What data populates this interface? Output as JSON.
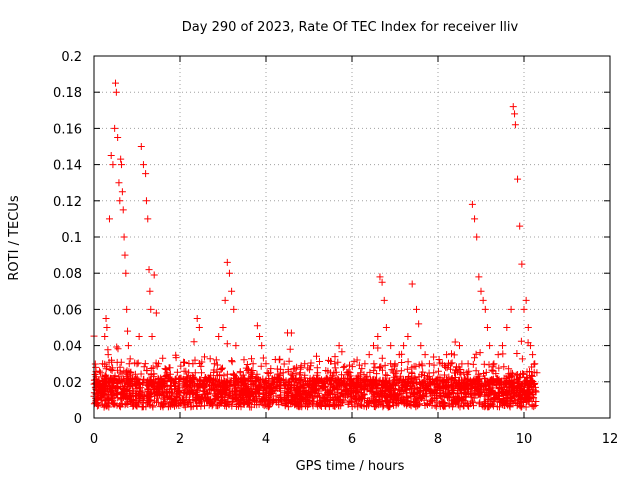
{
  "chart_data": {
    "type": "scatter",
    "title": "Day 290 of 2023, Rate Of TEC Index for receiver lliv",
    "xlabel": "GPS time / hours",
    "ylabel": "ROTI / TECUs",
    "xlim": [
      0,
      12
    ],
    "ylim": [
      0,
      0.2
    ],
    "xticks": [
      0,
      2,
      4,
      6,
      8,
      10,
      12
    ],
    "xtick_labels": [
      "0",
      "2",
      "4",
      "6",
      "8",
      "10",
      "12"
    ],
    "yticks": [
      0,
      0.02,
      0.04,
      0.06,
      0.08,
      0.1,
      0.12,
      0.14,
      0.16,
      0.18,
      0.2
    ],
    "ytick_labels": [
      "0",
      "0.02",
      "0.04",
      "0.06",
      "0.08",
      "0.1",
      "0.12",
      "0.14",
      "0.16",
      "0.18",
      "0.2"
    ],
    "grid": true,
    "marker": "plus",
    "color": "#ff0000",
    "series": [
      {
        "name": "ROTI",
        "x": [
          0.0,
          0.04,
          0.08,
          0.12,
          0.15,
          0.2,
          0.25,
          0.28,
          0.3,
          0.33,
          0.36,
          0.4,
          0.44,
          0.48,
          0.5,
          0.52,
          0.55,
          0.58,
          0.6,
          0.62,
          0.64,
          0.66,
          0.68,
          0.7,
          0.72,
          0.74,
          0.76,
          0.78,
          0.8,
          0.82,
          0.85,
          0.9,
          0.95,
          1.0,
          1.05,
          1.1,
          1.15,
          1.2,
          1.22,
          1.25,
          1.28,
          1.3,
          1.32,
          1.35,
          1.4,
          1.45,
          1.5,
          1.55,
          1.6,
          1.7,
          1.8,
          1.9,
          2.0,
          2.1,
          2.2,
          2.3,
          2.4,
          2.45,
          2.5,
          2.6,
          2.7,
          2.8,
          2.9,
          3.0,
          3.05,
          3.1,
          3.15,
          3.2,
          3.25,
          3.3,
          3.4,
          3.5,
          3.6,
          3.7,
          3.8,
          3.85,
          3.9,
          4.0,
          4.1,
          4.2,
          4.3,
          4.4,
          4.5,
          4.6,
          4.7,
          4.8,
          4.9,
          5.0,
          5.1,
          5.2,
          5.3,
          5.4,
          5.5,
          5.6,
          5.7,
          5.8,
          5.9,
          6.0,
          6.1,
          6.2,
          6.3,
          6.4,
          6.5,
          6.6,
          6.65,
          6.7,
          6.75,
          6.8,
          6.9,
          7.0,
          7.1,
          7.2,
          7.3,
          7.4,
          7.5,
          7.55,
          7.6,
          7.7,
          7.8,
          7.9,
          8.0,
          8.1,
          8.2,
          8.3,
          8.4,
          8.5,
          8.6,
          8.7,
          8.8,
          8.85,
          8.9,
          8.95,
          9.0,
          9.05,
          9.1,
          9.15,
          9.2,
          9.3,
          9.4,
          9.5,
          9.6,
          9.7,
          9.75,
          9.78,
          9.8,
          9.85,
          9.9,
          9.95,
          10.0,
          10.05,
          10.1,
          10.15,
          10.2,
          10.25,
          10.3
        ],
        "y": [
          0.012,
          0.028,
          0.02,
          0.018,
          0.025,
          0.03,
          0.045,
          0.055,
          0.05,
          0.035,
          0.11,
          0.145,
          0.14,
          0.16,
          0.185,
          0.18,
          0.155,
          0.13,
          0.12,
          0.143,
          0.14,
          0.125,
          0.115,
          0.1,
          0.09,
          0.08,
          0.06,
          0.048,
          0.04,
          0.03,
          0.025,
          0.022,
          0.02,
          0.03,
          0.045,
          0.15,
          0.14,
          0.135,
          0.12,
          0.11,
          0.082,
          0.07,
          0.06,
          0.045,
          0.079,
          0.058,
          0.03,
          0.022,
          0.02,
          0.025,
          0.018,
          0.02,
          0.022,
          0.02,
          0.025,
          0.03,
          0.055,
          0.05,
          0.025,
          0.02,
          0.022,
          0.03,
          0.045,
          0.05,
          0.065,
          0.086,
          0.08,
          0.07,
          0.06,
          0.04,
          0.025,
          0.02,
          0.022,
          0.03,
          0.051,
          0.045,
          0.04,
          0.03,
          0.025,
          0.02,
          0.022,
          0.025,
          0.047,
          0.02,
          0.022,
          0.025,
          0.03,
          0.02,
          0.022,
          0.025,
          0.02,
          0.022,
          0.025,
          0.03,
          0.04,
          0.028,
          0.025,
          0.02,
          0.022,
          0.025,
          0.03,
          0.035,
          0.04,
          0.045,
          0.078,
          0.075,
          0.065,
          0.05,
          0.04,
          0.03,
          0.035,
          0.04,
          0.045,
          0.074,
          0.06,
          0.052,
          0.04,
          0.035,
          0.03,
          0.025,
          0.022,
          0.03,
          0.035,
          0.03,
          0.042,
          0.04,
          0.025,
          0.03,
          0.118,
          0.11,
          0.1,
          0.078,
          0.07,
          0.065,
          0.06,
          0.05,
          0.04,
          0.03,
          0.035,
          0.04,
          0.05,
          0.06,
          0.172,
          0.168,
          0.162,
          0.132,
          0.106,
          0.085,
          0.06,
          0.065,
          0.05,
          0.04,
          0.035,
          0.03,
          0.025
        ]
      }
    ]
  }
}
